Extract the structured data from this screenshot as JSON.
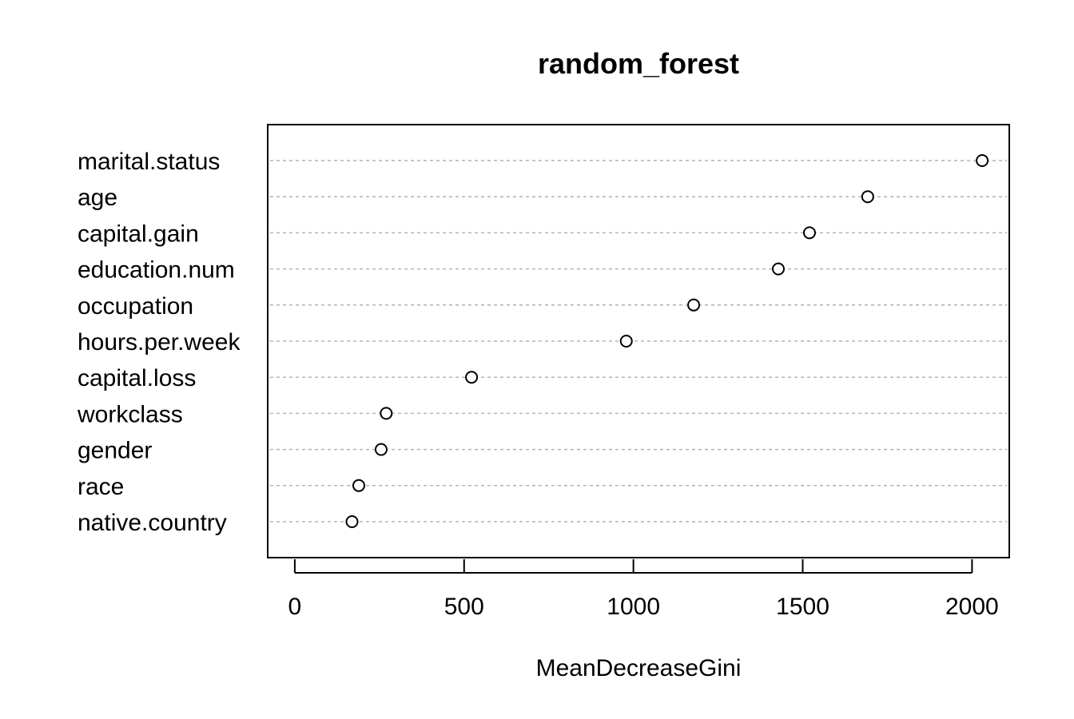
{
  "chart_data": {
    "type": "scatter",
    "subtype": "dotchart",
    "title": "random_forest",
    "xlabel": "MeanDecreaseGini",
    "ylabel": "",
    "xlim": [
      -80,
      2110
    ],
    "xticks": [
      0,
      500,
      1000,
      1500,
      2000
    ],
    "xtick_labels": [
      "0",
      "500",
      "1000",
      "1500",
      "2000"
    ],
    "grid": "dotted horizontal lines per category",
    "legend": "none",
    "categories": [
      "marital.status",
      "age",
      "capital.gain",
      "education.num",
      "occupation",
      "hours.per.week",
      "capital.loss",
      "workclass",
      "gender",
      "race",
      "native.country"
    ],
    "values": [
      2030,
      1692,
      1520,
      1428,
      1178,
      979,
      522,
      270,
      255,
      189,
      169
    ],
    "colors": {
      "point_stroke": "#000000",
      "point_fill": "#ffffff",
      "grid": "#b3b3b3",
      "frame": "#000000"
    }
  }
}
